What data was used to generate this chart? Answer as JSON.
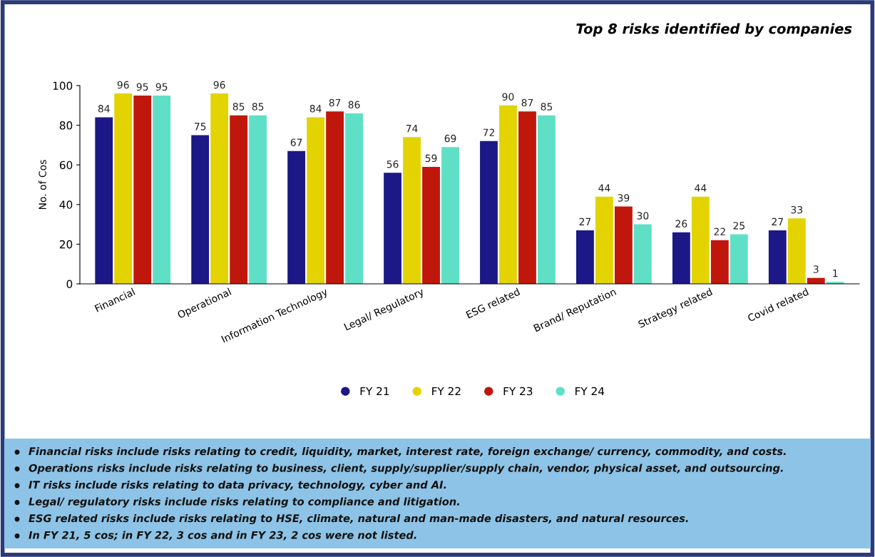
{
  "chart_data": {
    "type": "bar",
    "title": "Top 8 risks identified by companies",
    "ylabel": "No. of Cos",
    "categories": [
      "Financial",
      "Operational",
      "Information Technology",
      "Legal/ Regulatory",
      "ESG related",
      "Brand/ Reputation",
      "Strategy related",
      "Covid related"
    ],
    "series": [
      {
        "name": "FY 21",
        "color": "#1c1887",
        "values": [
          84,
          75,
          67,
          56,
          72,
          27,
          26,
          27
        ]
      },
      {
        "name": "FY 22",
        "color": "#e3d300",
        "values": [
          96,
          96,
          84,
          74,
          90,
          44,
          44,
          33
        ]
      },
      {
        "name": "FY 23",
        "color": "#c0170d",
        "values": [
          95,
          85,
          87,
          59,
          87,
          39,
          22,
          3
        ]
      },
      {
        "name": "FY 24",
        "color": "#5fe0c6",
        "values": [
          95,
          85,
          86,
          69,
          85,
          30,
          25,
          1
        ]
      }
    ],
    "ylim": [
      0,
      100
    ],
    "yticks": [
      0,
      20,
      40,
      60,
      80,
      100
    ],
    "grid": false,
    "legend": "bottom",
    "data_labels": true,
    "annotations": [
      "Financial risks include risks relating to credit, liquidity, market, interest rate, foreign exchange/ currency, commodity, and costs.",
      "Operations risks include risks relating to business, client, supply/supplier/supply chain, vendor, physical asset, and outsourcing.",
      "IT risks include risks relating to data privacy, technology, cyber and AI.",
      "Legal/ regulatory risks include risks relating to compliance and litigation.",
      "ESG related risks include risks relating to HSE, climate, natural and man-made disasters, and natural resources.",
      "In FY 21, 5 cos; in FY 22, 3 cos and in FY 23, 2 cos were not listed."
    ]
  }
}
